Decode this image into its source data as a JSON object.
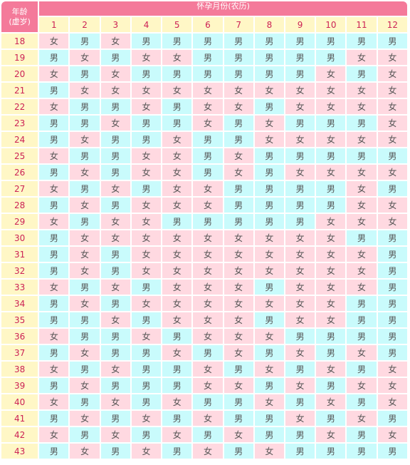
{
  "table": {
    "corner_label_1": "年龄",
    "corner_label_2": "(虚岁)",
    "title": "怀孕月份(农历)",
    "months": [
      "1",
      "2",
      "3",
      "4",
      "5",
      "6",
      "7",
      "8",
      "9",
      "10",
      "11",
      "12"
    ],
    "colors": {
      "header": "#f47a9a",
      "age_bg": "#fff7c6",
      "female_bg": "#ffd9e1",
      "male_bg": "#c9fbfc",
      "label_red": "#cc2255"
    },
    "rows": [
      {
        "age": "18",
        "cells": [
          "女",
          "男",
          "女",
          "男",
          "男",
          "男",
          "男",
          "男",
          "男",
          "男",
          "男",
          "男"
        ]
      },
      {
        "age": "19",
        "cells": [
          "男",
          "女",
          "男",
          "女",
          "女",
          "男",
          "男",
          "男",
          "男",
          "男",
          "女",
          "女"
        ]
      },
      {
        "age": "20",
        "cells": [
          "女",
          "男",
          "女",
          "男",
          "男",
          "男",
          "男",
          "男",
          "男",
          "女",
          "男",
          "女"
        ]
      },
      {
        "age": "21",
        "cells": [
          "男",
          "女",
          "女",
          "女",
          "女",
          "女",
          "女",
          "女",
          "女",
          "女",
          "女",
          "女"
        ]
      },
      {
        "age": "22",
        "cells": [
          "女",
          "男",
          "男",
          "女",
          "男",
          "女",
          "女",
          "男",
          "女",
          "女",
          "女",
          "女"
        ]
      },
      {
        "age": "23",
        "cells": [
          "男",
          "男",
          "女",
          "男",
          "男",
          "女",
          "男",
          "女",
          "男",
          "男",
          "男",
          "女"
        ]
      },
      {
        "age": "24",
        "cells": [
          "男",
          "女",
          "男",
          "男",
          "女",
          "男",
          "男",
          "女",
          "女",
          "女",
          "女",
          "女"
        ]
      },
      {
        "age": "25",
        "cells": [
          "女",
          "男",
          "男",
          "女",
          "女",
          "男",
          "女",
          "男",
          "男",
          "男",
          "男",
          "男"
        ]
      },
      {
        "age": "26",
        "cells": [
          "男",
          "女",
          "男",
          "女",
          "女",
          "男",
          "女",
          "男",
          "女",
          "女",
          "女",
          "女"
        ]
      },
      {
        "age": "27",
        "cells": [
          "女",
          "男",
          "女",
          "男",
          "女",
          "女",
          "男",
          "男",
          "男",
          "男",
          "女",
          "男"
        ]
      },
      {
        "age": "28",
        "cells": [
          "男",
          "女",
          "男",
          "女",
          "女",
          "女",
          "男",
          "男",
          "男",
          "男",
          "女",
          "女"
        ]
      },
      {
        "age": "29",
        "cells": [
          "女",
          "男",
          "女",
          "女",
          "男",
          "男",
          "男",
          "男",
          "男",
          "女",
          "女",
          "女"
        ]
      },
      {
        "age": "30",
        "cells": [
          "男",
          "女",
          "女",
          "女",
          "女",
          "女",
          "女",
          "女",
          "女",
          "女",
          "男",
          "男"
        ]
      },
      {
        "age": "31",
        "cells": [
          "男",
          "女",
          "男",
          "女",
          "女",
          "女",
          "女",
          "女",
          "女",
          "女",
          "女",
          "男"
        ]
      },
      {
        "age": "32",
        "cells": [
          "男",
          "女",
          "男",
          "女",
          "女",
          "女",
          "女",
          "女",
          "女",
          "女",
          "女",
          "男"
        ]
      },
      {
        "age": "33",
        "cells": [
          "女",
          "男",
          "女",
          "男",
          "女",
          "女",
          "女",
          "男",
          "女",
          "女",
          "女",
          "男"
        ]
      },
      {
        "age": "34",
        "cells": [
          "男",
          "女",
          "男",
          "女",
          "女",
          "女",
          "女",
          "女",
          "女",
          "女",
          "男",
          "男"
        ]
      },
      {
        "age": "35",
        "cells": [
          "男",
          "男",
          "女",
          "男",
          "女",
          "女",
          "女",
          "男",
          "女",
          "女",
          "男",
          "男"
        ]
      },
      {
        "age": "36",
        "cells": [
          "女",
          "男",
          "男",
          "女",
          "男",
          "女",
          "女",
          "女",
          "男",
          "男",
          "男",
          "男"
        ]
      },
      {
        "age": "37",
        "cells": [
          "男",
          "女",
          "男",
          "男",
          "女",
          "男",
          "女",
          "男",
          "女",
          "男",
          "女",
          "男"
        ]
      },
      {
        "age": "38",
        "cells": [
          "女",
          "男",
          "女",
          "男",
          "男",
          "女",
          "男",
          "女",
          "男",
          "女",
          "男",
          "女"
        ]
      },
      {
        "age": "39",
        "cells": [
          "男",
          "女",
          "男",
          "男",
          "男",
          "女",
          "女",
          "男",
          "女",
          "男",
          "女",
          "女"
        ]
      },
      {
        "age": "40",
        "cells": [
          "女",
          "男",
          "女",
          "男",
          "女",
          "男",
          "男",
          "女",
          "男",
          "女",
          "男",
          "女"
        ]
      },
      {
        "age": "41",
        "cells": [
          "男",
          "女",
          "男",
          "女",
          "男",
          "女",
          "男",
          "男",
          "女",
          "男",
          "女",
          "男"
        ]
      },
      {
        "age": "42",
        "cells": [
          "女",
          "男",
          "女",
          "男",
          "女",
          "男",
          "女",
          "男",
          "男",
          "女",
          "男",
          "女"
        ]
      },
      {
        "age": "43",
        "cells": [
          "男",
          "女",
          "男",
          "女",
          "男",
          "女",
          "男",
          "女",
          "男",
          "男",
          "男",
          "男"
        ]
      }
    ]
  }
}
